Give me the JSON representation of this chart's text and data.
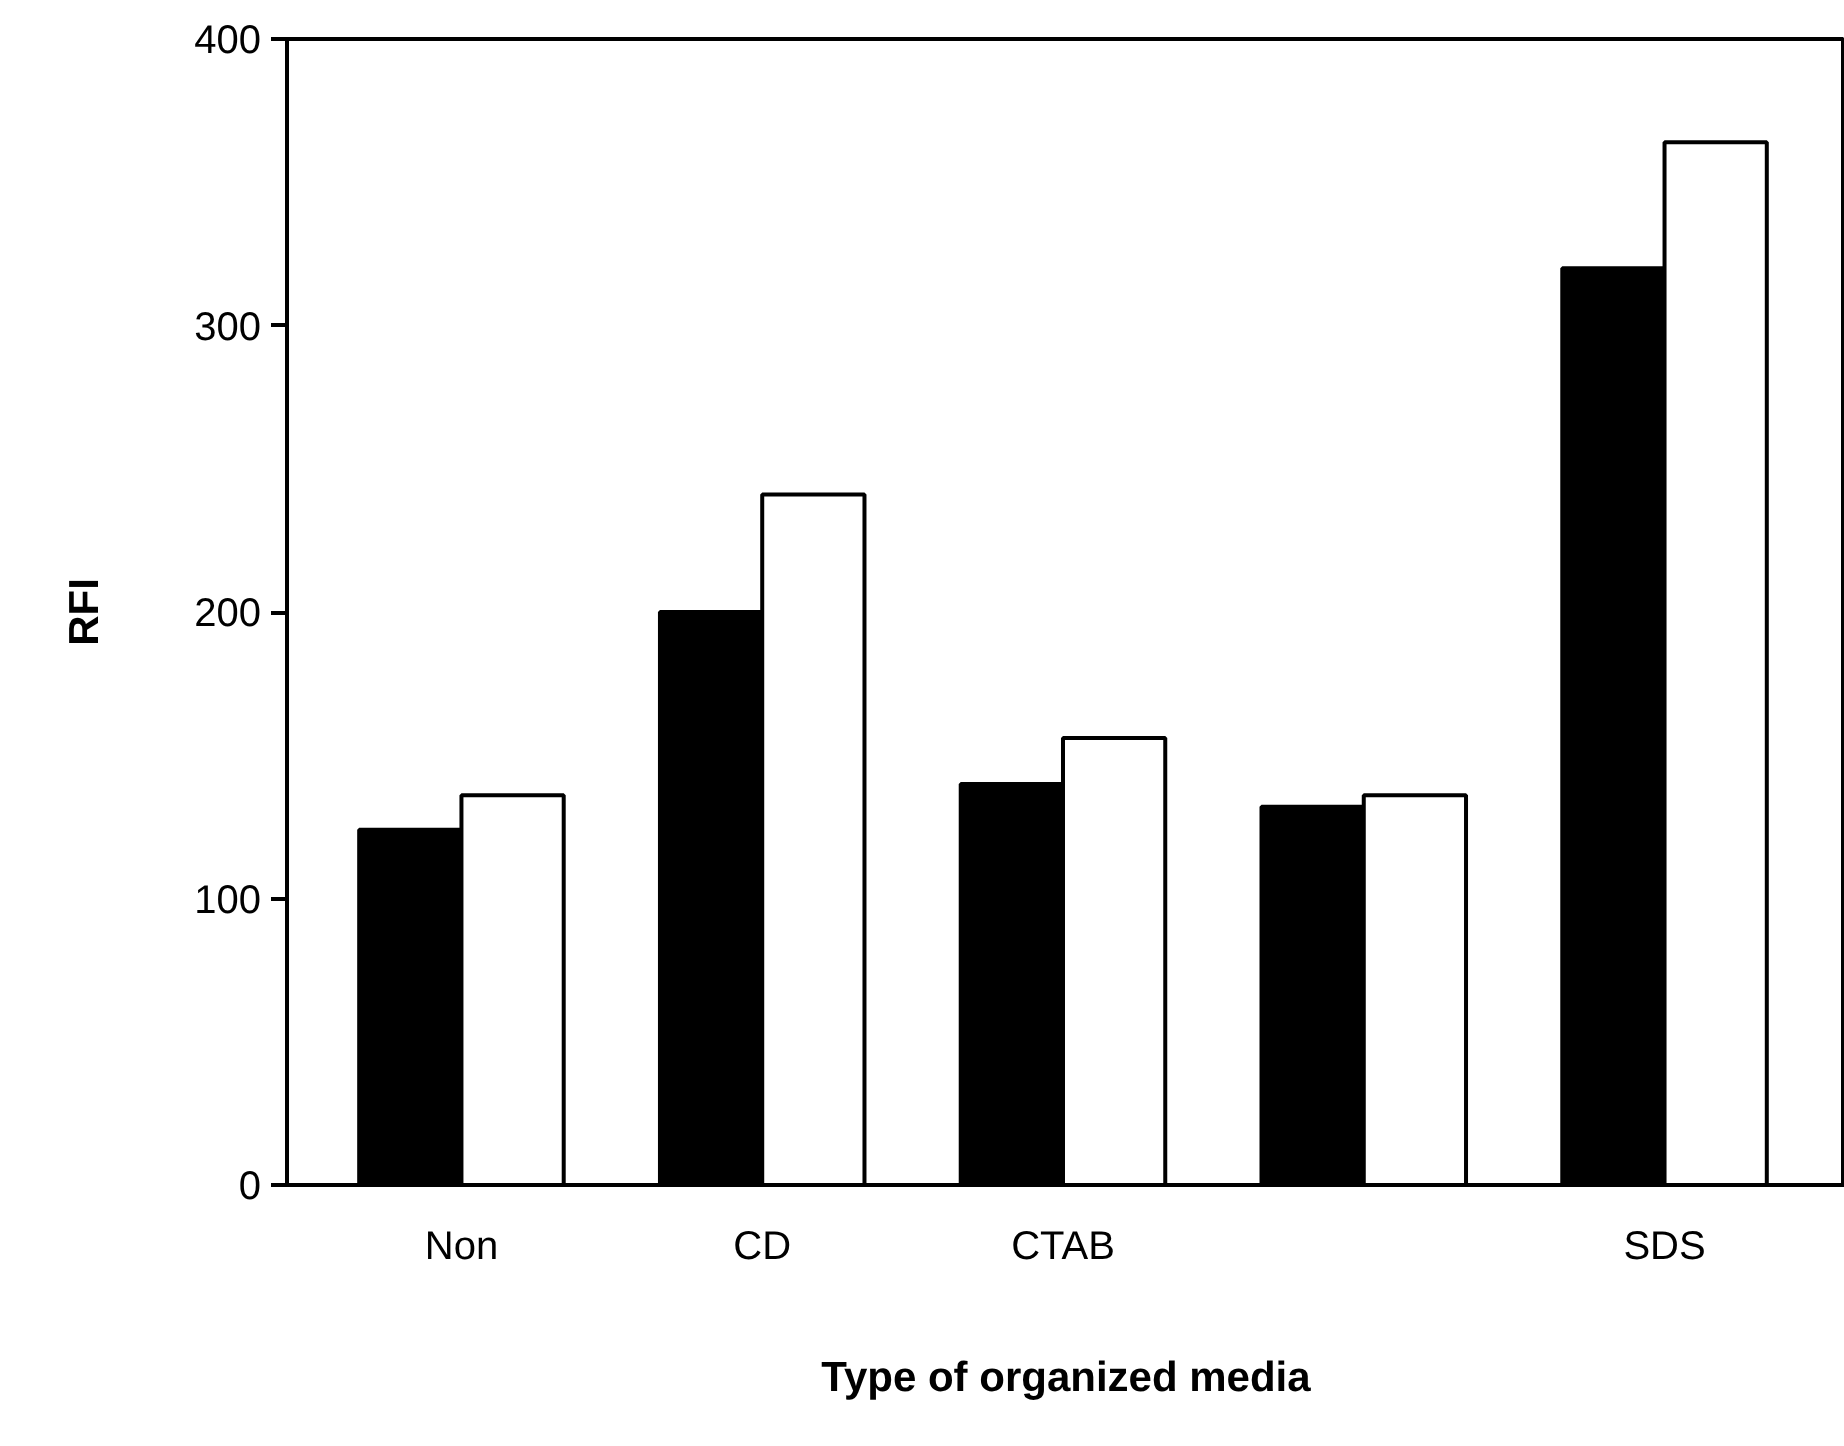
{
  "chart_data": {
    "type": "bar",
    "xlabel": "Type of organized media",
    "ylabel": "RFI",
    "categories": [
      "Non",
      "CD",
      "CTAB",
      null,
      "SDS"
    ],
    "series": [
      {
        "color": "#000000",
        "values": [
          124,
          200,
          140,
          132,
          320
        ]
      },
      {
        "color": "#ffffff",
        "values": [
          136,
          241,
          156,
          136,
          364
        ]
      }
    ],
    "ylim": [
      0,
      400
    ],
    "yticks": [
      0,
      100,
      200,
      300,
      400
    ],
    "grid": false
  }
}
